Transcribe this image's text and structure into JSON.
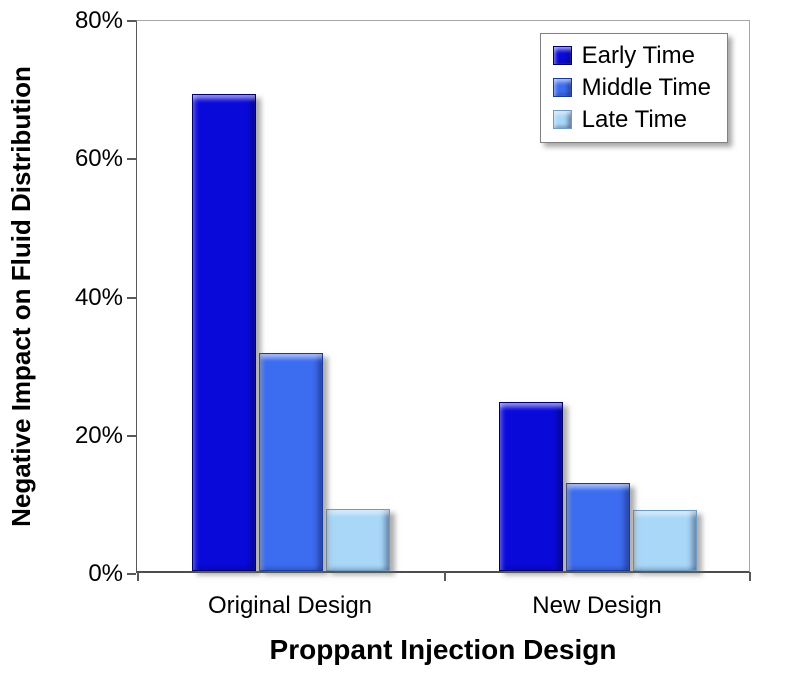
{
  "chart_data": {
    "type": "bar",
    "title": "",
    "xlabel": "Proppant Injection Design",
    "ylabel": "Negative Impact on Fluid Distribution",
    "categories": [
      "Original Design",
      "New Design"
    ],
    "series": [
      {
        "name": "Early Time",
        "color": "#0909d9",
        "border": "#000066",
        "values": [
          69,
          24.5
        ]
      },
      {
        "name": "Middle Time",
        "color": "#3c6cf0",
        "border": "#1a3a99",
        "values": [
          31.5,
          12.8
        ]
      },
      {
        "name": "Late Time",
        "color": "#a8d7f8",
        "border": "#6f9cc4",
        "values": [
          9,
          8.8
        ]
      }
    ],
    "ylim": [
      0,
      80
    ],
    "yticks": [
      {
        "value": 0,
        "label": "0%"
      },
      {
        "value": 20,
        "label": "20%"
      },
      {
        "value": 40,
        "label": "40%"
      },
      {
        "value": 60,
        "label": "60%"
      },
      {
        "value": 80,
        "label": "80%"
      }
    ],
    "legend_position": "top-right",
    "grid": false
  }
}
